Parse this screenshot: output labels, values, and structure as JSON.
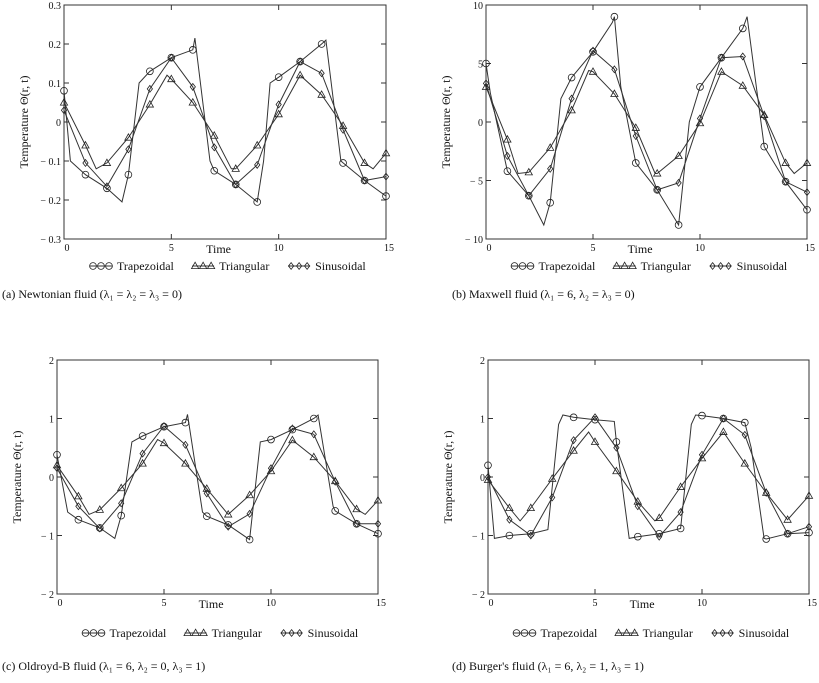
{
  "chart_data": [
    {
      "type": "line",
      "caption": "(a) Newtonian fluid (λ₁ = λ₂ = λ₃ = 0)",
      "xlabel": "Time",
      "ylabel": "Temperature Θ(r, t)",
      "xlim": [
        0,
        15
      ],
      "ylim": [
        -0.3,
        0.3
      ],
      "xticks": [
        0,
        5,
        10,
        15
      ],
      "yticks": [
        -0.3,
        -0.2,
        -0.1,
        0,
        0.1,
        0.2,
        0.3
      ],
      "ytick_labels": [
        "− 0.3",
        "− 0.2",
        "− 0.1",
        "0",
        "0.1",
        "0.2",
        "0.3"
      ],
      "legend": "bottom",
      "series": [
        {
          "name": "Trapezoidal",
          "marker": "circle",
          "x": [
            0,
            0.3,
            1,
            2,
            2.7,
            3,
            3.5,
            4,
            5,
            6,
            6.1,
            6.8,
            7,
            8,
            9,
            9.3,
            9.6,
            10,
            11,
            12,
            12.2,
            12.9,
            13,
            14,
            15
          ],
          "y": [
            0.08,
            -0.1,
            -0.135,
            -0.17,
            -0.205,
            -0.135,
            0.1,
            0.13,
            0.165,
            0.185,
            0.215,
            -0.1,
            -0.125,
            -0.16,
            -0.205,
            -0.1,
            0.1,
            0.115,
            0.155,
            0.2,
            0.21,
            -0.1,
            -0.105,
            -0.15,
            -0.19
          ]
        },
        {
          "name": "Triangular",
          "marker": "triangle",
          "x": [
            0,
            1,
            1.5,
            2,
            3,
            4,
            4.8,
            5,
            6,
            7,
            7.8,
            8,
            9,
            10,
            11,
            12,
            13,
            14,
            14.4,
            15
          ],
          "y": [
            0.05,
            -0.06,
            -0.12,
            -0.105,
            -0.04,
            0.045,
            0.12,
            0.11,
            0.05,
            -0.035,
            -0.12,
            -0.12,
            -0.06,
            0.02,
            0.12,
            0.07,
            -0.01,
            -0.105,
            -0.12,
            -0.08
          ]
        },
        {
          "name": "Sinusoidal",
          "marker": "diamond",
          "x": [
            0,
            1,
            2,
            3,
            4,
            5,
            6,
            7,
            8,
            9,
            10,
            11,
            12,
            13,
            14,
            15
          ],
          "y": [
            0.03,
            -0.105,
            -0.165,
            -0.07,
            0.085,
            0.165,
            0.09,
            -0.065,
            -0.16,
            -0.11,
            0.045,
            0.155,
            0.125,
            -0.02,
            -0.15,
            -0.14
          ]
        }
      ]
    },
    {
      "type": "line",
      "caption": "(b) Maxwell fluid (λ₁ = 6, λ₂ = λ₃ = 0)",
      "xlabel": "Time",
      "ylabel": "Temperature Θ(r, t)",
      "xlim": [
        0,
        15
      ],
      "ylim": [
        -10,
        10
      ],
      "xticks": [
        0,
        5,
        10,
        15
      ],
      "yticks": [
        -10,
        -5,
        0,
        5,
        10
      ],
      "ytick_labels": [
        "− 10",
        "− 5",
        "0",
        "5",
        "10"
      ],
      "legend": "bottom",
      "series": [
        {
          "name": "Trapezoidal",
          "marker": "circle",
          "x": [
            0,
            0.2,
            1,
            2,
            2.7,
            3,
            3.5,
            4,
            5,
            5.9,
            6,
            6.3,
            7,
            8,
            9,
            9.5,
            10,
            11,
            12,
            12.2,
            13,
            14,
            15
          ],
          "y": [
            5,
            2.5,
            -4.2,
            -6.3,
            -8.8,
            -6.9,
            2,
            3.8,
            6,
            8.5,
            9,
            3,
            -3.5,
            -5.8,
            -8.8,
            0,
            3,
            5.5,
            8,
            9,
            -2.1,
            -5.1,
            -7.5
          ]
        },
        {
          "name": "Triangular",
          "marker": "triangle",
          "x": [
            0,
            1,
            1.5,
            2,
            3,
            4,
            4.8,
            5,
            6,
            7,
            7.9,
            8,
            9,
            10,
            11,
            12,
            13,
            14,
            14.4,
            15
          ],
          "y": [
            3,
            -1.5,
            -4.4,
            -4.3,
            -2.2,
            1,
            4.4,
            4.3,
            2.4,
            -0.5,
            -4.4,
            -4.4,
            -2.9,
            -0.1,
            4.3,
            3.1,
            0.6,
            -3.5,
            -4.4,
            -3.5
          ]
        },
        {
          "name": "Sinusoidal",
          "marker": "diamond",
          "x": [
            0,
            1,
            2,
            3,
            4,
            5,
            6,
            7,
            8,
            9,
            10,
            11,
            12,
            13,
            14,
            15
          ],
          "y": [
            3.3,
            -2.9,
            -6.3,
            -4,
            2,
            6.1,
            4.5,
            -1.2,
            -5.8,
            -5.2,
            0.3,
            5.5,
            5.6,
            0.5,
            -5.1,
            -6
          ]
        }
      ]
    },
    {
      "type": "line",
      "caption": "(c) Oldroyd-B fluid (λ₁ = 6, λ₂ = 0, λ₃ = 1)",
      "xlabel": "Time",
      "ylabel": "Temperature Θ(r, t)",
      "xlim": [
        0,
        15
      ],
      "ylim": [
        -2,
        2
      ],
      "xticks": [
        0,
        5,
        10,
        15
      ],
      "yticks": [
        -2,
        -1,
        0,
        1,
        2
      ],
      "ytick_labels": [
        "− 2",
        "− 1",
        "0",
        "1",
        "2"
      ],
      "legend": "bottom",
      "series": [
        {
          "name": "Trapezoidal",
          "marker": "circle",
          "x": [
            0,
            0.5,
            1,
            2,
            2.7,
            3,
            3.5,
            4,
            5,
            6,
            6.1,
            6.8,
            7,
            8,
            9,
            9.5,
            10,
            11,
            12,
            12.2,
            12.9,
            13,
            14,
            15
          ],
          "y": [
            0.38,
            -0.6,
            -0.73,
            -0.87,
            -1.05,
            -0.66,
            0.6,
            0.7,
            0.86,
            0.93,
            1.07,
            -0.6,
            -0.67,
            -0.82,
            -1.07,
            0.6,
            0.64,
            0.81,
            1.0,
            1.06,
            -0.5,
            -0.58,
            -0.8,
            -0.97
          ]
        },
        {
          "name": "Triangular",
          "marker": "triangle",
          "x": [
            0,
            1,
            1.5,
            2,
            3,
            4,
            4.7,
            5,
            6,
            7,
            8,
            9,
            10,
            11,
            12,
            13,
            14,
            14.4,
            15
          ],
          "y": [
            0.2,
            -0.33,
            -0.64,
            -0.56,
            -0.19,
            0.23,
            0.64,
            0.58,
            0.23,
            -0.2,
            -0.64,
            -0.31,
            0.1,
            0.63,
            0.34,
            -0.07,
            -0.55,
            -0.64,
            -0.4
          ]
        },
        {
          "name": "Sinusoidal",
          "marker": "diamond",
          "x": [
            0,
            1,
            2,
            3,
            4,
            5,
            6,
            7,
            8,
            9,
            10,
            11,
            12,
            13,
            14,
            15
          ],
          "y": [
            0.15,
            -0.5,
            -0.88,
            -0.45,
            0.4,
            0.87,
            0.55,
            -0.28,
            -0.85,
            -0.63,
            0.15,
            0.83,
            0.73,
            -0.08,
            -0.8,
            -0.8
          ]
        }
      ]
    },
    {
      "type": "line",
      "caption": "(d) Burger's fluid (λ₁ = 6, λ₂ = 1, λ₃ = 1)",
      "xlabel": "Time",
      "ylabel": "Temperature Θ(r, t)",
      "xlim": [
        0,
        15
      ],
      "ylim": [
        -2,
        2
      ],
      "xticks": [
        0,
        5,
        10,
        15
      ],
      "yticks": [
        -2,
        -1,
        0,
        1,
        2
      ],
      "ytick_labels": [
        "− 2",
        "− 1",
        "0",
        "1",
        "2"
      ],
      "legend": "bottom",
      "series": [
        {
          "name": "Trapezoidal",
          "marker": "circle",
          "x": [
            0,
            0.3,
            1,
            2,
            2.8,
            3.3,
            3.5,
            4,
            5,
            5.9,
            6,
            6.6,
            7,
            8,
            9,
            9.5,
            9.7,
            10,
            11,
            12,
            12.3,
            12.9,
            13,
            14,
            15
          ],
          "y": [
            0.2,
            -1.05,
            -1.0,
            -0.97,
            -0.9,
            0.9,
            1.06,
            1.02,
            0.98,
            0.95,
            0.6,
            -1.05,
            -1.02,
            -0.97,
            -0.88,
            0.9,
            1.06,
            1.05,
            1.0,
            0.93,
            0.5,
            -1.05,
            -1.06,
            -0.97,
            -0.95
          ]
        },
        {
          "name": "Triangular",
          "marker": "triangle",
          "x": [
            0,
            1,
            1.5,
            2,
            3,
            4,
            4.7,
            5,
            6,
            7,
            7.8,
            8,
            9,
            10,
            11,
            12,
            13,
            14,
            15
          ],
          "y": [
            -0.05,
            -0.53,
            -0.75,
            -0.53,
            -0.03,
            0.45,
            0.77,
            0.6,
            0.1,
            -0.42,
            -0.75,
            -0.7,
            -0.17,
            0.32,
            0.77,
            0.23,
            -0.27,
            -0.73,
            -0.32
          ]
        },
        {
          "name": "Sinusoidal",
          "marker": "diamond",
          "x": [
            0,
            1,
            2,
            3,
            4,
            5,
            6,
            7,
            8,
            9,
            10,
            11,
            12,
            13,
            14,
            15
          ],
          "y": [
            0,
            -0.73,
            -1.0,
            -0.35,
            0.63,
            1.02,
            0.5,
            -0.5,
            -1.02,
            -0.6,
            0.38,
            1.0,
            0.72,
            -0.27,
            -0.97,
            -0.85
          ]
        }
      ]
    }
  ]
}
